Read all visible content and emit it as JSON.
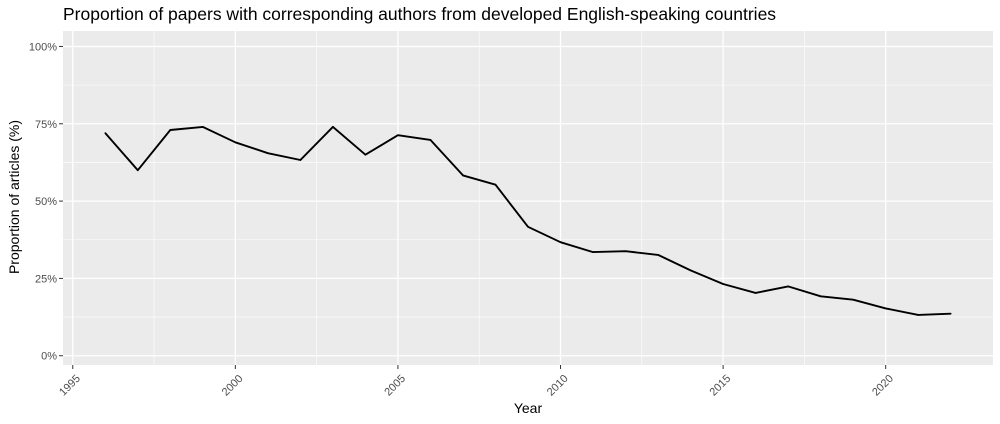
{
  "chart_data": {
    "type": "line",
    "title": "Proportion of papers with corresponding authors from developed English-speaking countries",
    "xlabel": "Year",
    "ylabel": "Proportion of articles (%)",
    "xlim": [
      1994.7,
      2023.3
    ],
    "ylim": [
      -3,
      105
    ],
    "x_ticks": [
      1995,
      2000,
      2005,
      2010,
      2015,
      2020
    ],
    "x_tick_labels": [
      "1995",
      "2000",
      "2005",
      "2010",
      "2015",
      "2020"
    ],
    "y_ticks": [
      0,
      25,
      50,
      75,
      100
    ],
    "y_tick_labels": [
      "0%",
      "25%",
      "50%",
      "75%",
      "100%"
    ],
    "grid": true,
    "legend": "none",
    "colors": {
      "panel": "#ebebeb",
      "grid": "#ffffff",
      "line": "#000000",
      "tick_text": "#4d4d4d"
    },
    "series": [
      {
        "x": [
          1996,
          1997,
          1998,
          1999,
          2000,
          2001,
          2002,
          2003,
          2004,
          2005,
          2006,
          2007,
          2008,
          2009,
          2010,
          2011,
          2012,
          2013,
          2014,
          2015,
          2016,
          2017,
          2018,
          2019,
          2020,
          2021,
          2022
        ],
        "values": [
          72,
          60,
          73,
          74,
          69,
          65.5,
          63.3,
          74,
          65,
          71.3,
          69.8,
          58.3,
          55.3,
          41.7,
          36.7,
          33.5,
          33.8,
          32.6,
          27.6,
          23.2,
          20.3,
          22.4,
          19.2,
          18.1,
          15.3,
          13.2,
          13.6
        ]
      }
    ]
  }
}
